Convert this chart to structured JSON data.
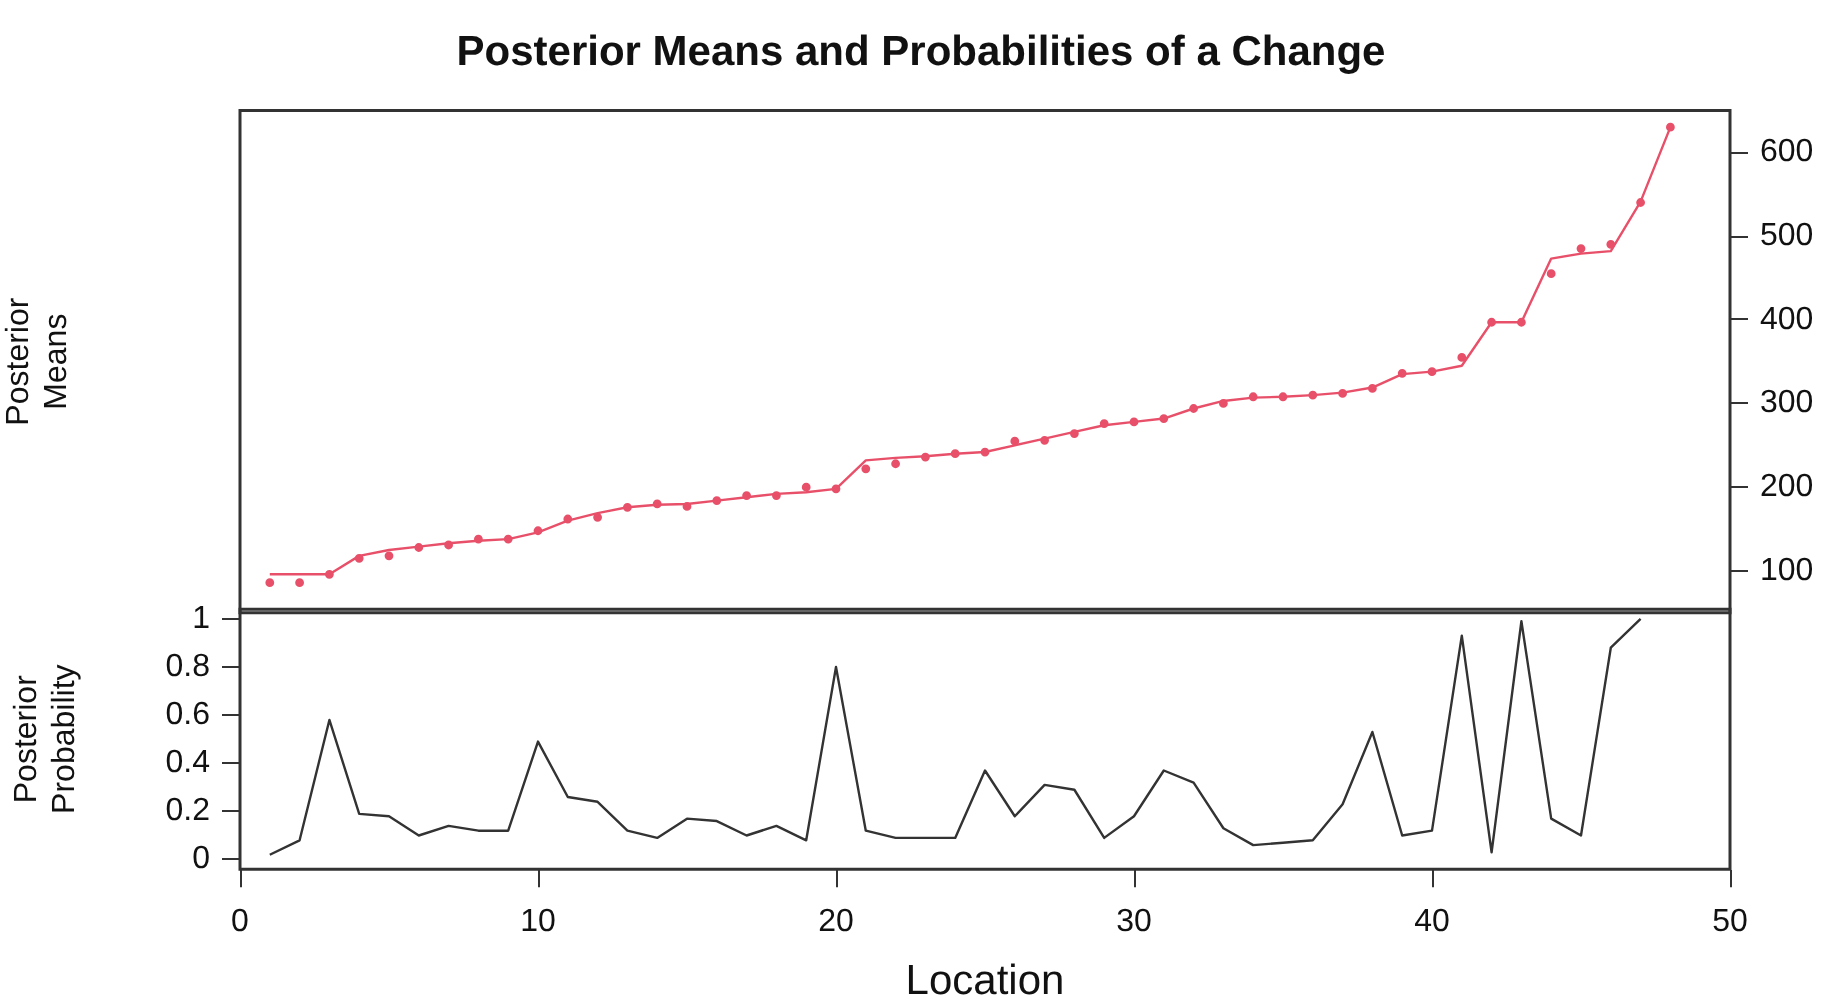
{
  "chart_data": [
    {
      "type": "line",
      "title": "Posterior Means and Probabilities of a Change",
      "ylabel": "Posterior\nMeans",
      "x": [
        1,
        2,
        3,
        4,
        5,
        6,
        7,
        8,
        9,
        10,
        11,
        12,
        13,
        14,
        15,
        16,
        17,
        18,
        19,
        20,
        21,
        22,
        23,
        24,
        25,
        26,
        27,
        28,
        29,
        30,
        31,
        32,
        33,
        34,
        35,
        36,
        37,
        38,
        39,
        40,
        41,
        42,
        43,
        44,
        45,
        46,
        47,
        48
      ],
      "series": [
        {
          "type": "scatter",
          "color": "#e8506a",
          "marker": "circle",
          "values": [
            86,
            86,
            96,
            115,
            118,
            128,
            131,
            138,
            138,
            148,
            162,
            164,
            176,
            180,
            177,
            184,
            190,
            190,
            200,
            198,
            222,
            228,
            236,
            240,
            242,
            255,
            256,
            264,
            276,
            278,
            282,
            294,
            300,
            308,
            308,
            310,
            312,
            318,
            336,
            338,
            355,
            397,
            397,
            455,
            485,
            490,
            540,
            630
          ]
        },
        {
          "type": "line",
          "color": "#e8506a",
          "values": [
            96,
            96,
            96,
            118,
            125,
            129,
            133,
            136,
            138,
            146,
            160,
            169,
            176,
            179,
            180,
            184,
            188,
            192,
            194,
            198,
            232,
            235,
            237,
            240,
            242,
            250,
            258,
            266,
            274,
            278,
            282,
            294,
            303,
            307,
            308,
            310,
            313,
            319,
            335,
            338,
            345,
            397,
            397,
            473,
            479,
            482,
            541,
            630
          ]
        }
      ],
      "xlim": [
        0,
        50
      ],
      "ylim": [
        50,
        650
      ],
      "yticks": [
        100,
        200,
        300,
        400,
        500,
        600
      ],
      "tick_labels": "y",
      "legend": false,
      "grid": false
    },
    {
      "type": "line",
      "xlabel": "Location",
      "ylabel": "Posterior\nProbability",
      "x": [
        1,
        2,
        3,
        4,
        5,
        6,
        7,
        8,
        9,
        10,
        11,
        12,
        13,
        14,
        15,
        16,
        17,
        18,
        19,
        20,
        21,
        22,
        23,
        24,
        25,
        26,
        27,
        28,
        29,
        30,
        31,
        32,
        33,
        34,
        35,
        36,
        37,
        38,
        39,
        40,
        41,
        42,
        43,
        44,
        45,
        46,
        47
      ],
      "values": [
        0.02,
        0.08,
        0.58,
        0.19,
        0.18,
        0.1,
        0.14,
        0.12,
        0.12,
        0.49,
        0.26,
        0.24,
        0.12,
        0.09,
        0.17,
        0.16,
        0.1,
        0.14,
        0.08,
        0.8,
        0.12,
        0.09,
        0.09,
        0.09,
        0.37,
        0.18,
        0.31,
        0.29,
        0.09,
        0.18,
        0.37,
        0.32,
        0.13,
        0.06,
        0.07,
        0.08,
        0.23,
        0.53,
        0.1,
        0.12,
        0.93,
        0.03,
        0.99,
        0.17,
        0.1,
        0.88,
        1
      ],
      "color": "#333333",
      "xlim": [
        0,
        50
      ],
      "xticks": [
        0,
        10,
        20,
        30,
        40,
        50
      ],
      "ylim": [
        -0.04,
        1.04
      ],
      "yticks": [
        0,
        0.2,
        0.4,
        0.6,
        0.8,
        1
      ],
      "legend": false,
      "grid": false
    }
  ]
}
